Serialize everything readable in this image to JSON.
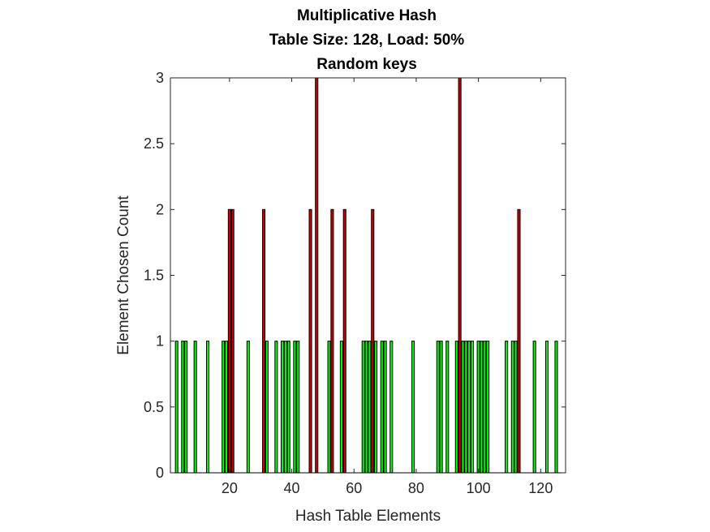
{
  "chart_data": {
    "type": "bar",
    "title": [
      "Multiplicative Hash",
      "Table Size: 128, Load: 50%",
      "Random keys"
    ],
    "xlabel": "Hash Table Elements",
    "ylabel": "Element Chosen Count",
    "xlim": [
      1,
      128
    ],
    "ylim": [
      0,
      3
    ],
    "xticks": [
      20,
      40,
      60,
      80,
      100,
      120
    ],
    "yticks": [
      0,
      0.5,
      1,
      1.5,
      2,
      2.5,
      3
    ],
    "ytick_labels": [
      "0",
      "0.5",
      "1",
      "1.5",
      "2",
      "2.5",
      "3"
    ],
    "grid": false,
    "legend": "none",
    "colors": {
      "single": "#00ff00",
      "collision": "#cc0000",
      "edge": "#000000",
      "axis": "#262626"
    },
    "x": [
      3,
      5,
      6,
      9,
      13,
      18,
      19,
      20,
      21,
      26,
      31,
      32,
      35,
      37,
      38,
      39,
      41,
      42,
      46,
      48,
      52,
      53,
      56,
      57,
      63,
      64,
      65,
      66,
      67,
      69,
      70,
      72,
      79,
      87,
      88,
      90,
      93,
      94,
      95,
      96,
      97,
      98,
      100,
      101,
      102,
      103,
      109,
      111,
      112,
      113,
      118,
      122,
      125
    ],
    "values": [
      1,
      1,
      1,
      1,
      1,
      1,
      1,
      2,
      2,
      1,
      2,
      1,
      1,
      1,
      1,
      1,
      1,
      1,
      2,
      3,
      1,
      2,
      1,
      2,
      1,
      1,
      1,
      2,
      1,
      1,
      1,
      1,
      1,
      1,
      1,
      1,
      1,
      3,
      1,
      1,
      1,
      1,
      1,
      1,
      1,
      1,
      1,
      1,
      1,
      2,
      1,
      1,
      1
    ]
  }
}
